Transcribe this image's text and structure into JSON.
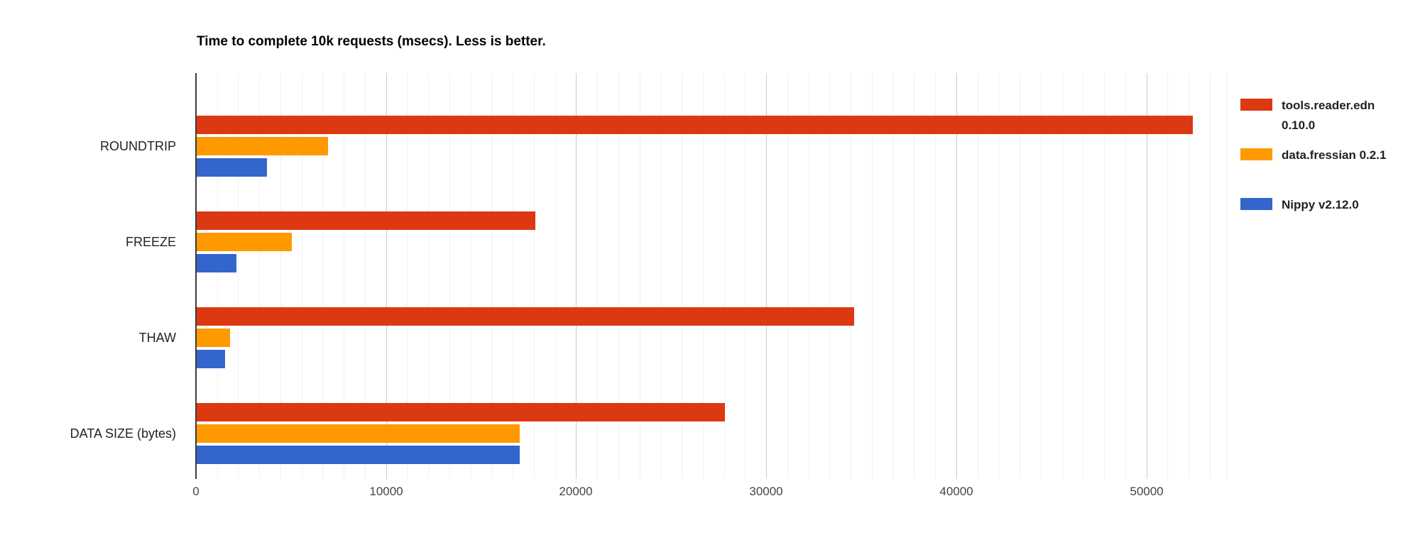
{
  "page": {
    "background": "#ffffff"
  },
  "chart_data": {
    "type": "bar",
    "orientation": "horizontal",
    "title": "Time to complete 10k requests (msecs). Less is better.",
    "categories": [
      "ROUNDTRIP",
      "FREEZE",
      "THAW",
      "DATA SIZE (bytes)"
    ],
    "series": [
      {
        "name": "tools.reader.edn 0.10.0",
        "color": "#dc3912",
        "values": [
          52400,
          17800,
          34600,
          27800
        ]
      },
      {
        "name": "data.fressian 0.2.1",
        "color": "#ff9900",
        "values": [
          6900,
          5000,
          1750,
          17000
        ]
      },
      {
        "name": "Nippy v2.12.0",
        "color": "#3366cc",
        "values": [
          3700,
          2100,
          1500,
          17000
        ]
      }
    ],
    "x_axis": {
      "min": 0,
      "max": 54200,
      "tick_values": [
        0,
        10000,
        20000,
        30000,
        40000,
        50000
      ],
      "tick_labels": [
        "0",
        "10000",
        "20000",
        "30000",
        "40000",
        "50000"
      ],
      "minor_step": 1111.111
    },
    "legend_position": "right",
    "grid": true,
    "colors": {
      "major_gridline": "#cccccc",
      "minor_gridline": "#f0f0f0",
      "baseline": "#3c3c3c",
      "axis_text": "#444444",
      "label_text": "#222222",
      "title_text": "#000000"
    }
  }
}
